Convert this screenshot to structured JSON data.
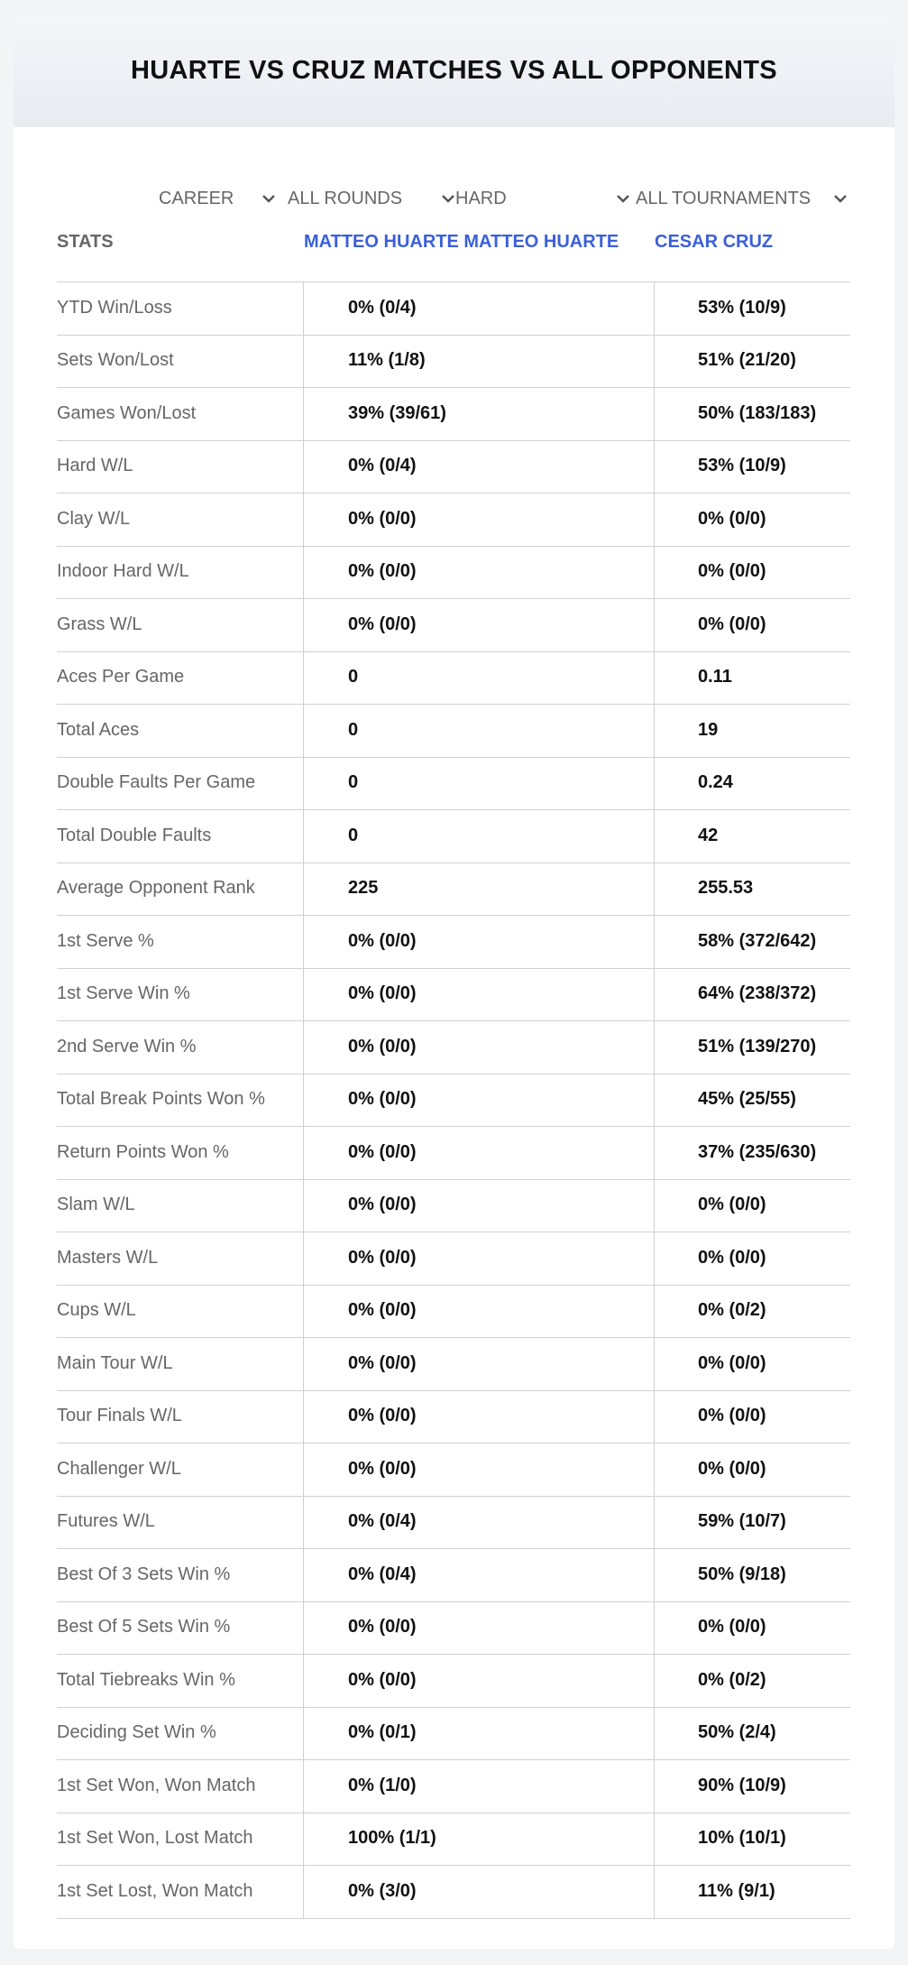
{
  "header": {
    "title": "HUARTE VS CRUZ MATCHES VS ALL OPPONENTS"
  },
  "filters": [
    "CAREER",
    "ALL ROUNDS",
    "HARD",
    "ALL TOURNAMENTS"
  ],
  "table": {
    "columns": [
      "STATS",
      "MATTEO HUARTE MATTEO HUARTE",
      "CESAR CRUZ"
    ],
    "rows": [
      [
        "YTD Win/Loss",
        "0% (0/4)",
        "53% (10/9)"
      ],
      [
        "Sets Won/Lost",
        "11% (1/8)",
        "51% (21/20)"
      ],
      [
        "Games Won/Lost",
        "39% (39/61)",
        "50% (183/183)"
      ],
      [
        "Hard W/L",
        "0% (0/4)",
        "53% (10/9)"
      ],
      [
        "Clay W/L",
        "0% (0/0)",
        "0% (0/0)"
      ],
      [
        "Indoor Hard W/L",
        "0% (0/0)",
        "0% (0/0)"
      ],
      [
        "Grass W/L",
        "0% (0/0)",
        "0% (0/0)"
      ],
      [
        "Aces Per Game",
        "0",
        "0.11"
      ],
      [
        "Total Aces",
        "0",
        "19"
      ],
      [
        "Double Faults Per Game",
        "0",
        "0.24"
      ],
      [
        "Total Double Faults",
        "0",
        "42"
      ],
      [
        "Average Opponent Rank",
        "225",
        "255.53"
      ],
      [
        "1st Serve %",
        "0% (0/0)",
        "58% (372/642)"
      ],
      [
        "1st Serve Win %",
        "0% (0/0)",
        "64% (238/372)"
      ],
      [
        "2nd Serve Win %",
        "0% (0/0)",
        "51% (139/270)"
      ],
      [
        "Total Break Points Won %",
        "0% (0/0)",
        "45% (25/55)"
      ],
      [
        "Return Points Won %",
        "0% (0/0)",
        "37% (235/630)"
      ],
      [
        "Slam W/L",
        "0% (0/0)",
        "0% (0/0)"
      ],
      [
        "Masters W/L",
        "0% (0/0)",
        "0% (0/0)"
      ],
      [
        "Cups W/L",
        "0% (0/0)",
        "0% (0/2)"
      ],
      [
        "Main Tour W/L",
        "0% (0/0)",
        "0% (0/0)"
      ],
      [
        "Tour Finals W/L",
        "0% (0/0)",
        "0% (0/0)"
      ],
      [
        "Challenger W/L",
        "0% (0/0)",
        "0% (0/0)"
      ],
      [
        "Futures W/L",
        "0% (0/4)",
        "59% (10/7)"
      ],
      [
        "Best Of 3 Sets Win %",
        "0% (0/4)",
        "50% (9/18)"
      ],
      [
        "Best Of 5 Sets Win %",
        "0% (0/0)",
        "0% (0/0)"
      ],
      [
        "Total Tiebreaks Win %",
        "0% (0/0)",
        "0% (0/2)"
      ],
      [
        "Deciding Set Win %",
        "0% (0/1)",
        "50% (2/4)"
      ],
      [
        "1st Set Won, Won Match",
        "0% (1/0)",
        "90% (10/9)"
      ],
      [
        "1st Set Won, Lost Match",
        "100% (1/1)",
        "10% (10/1)"
      ],
      [
        "1st Set Lost, Won Match",
        "0% (3/0)",
        "11% (9/1)"
      ]
    ]
  }
}
